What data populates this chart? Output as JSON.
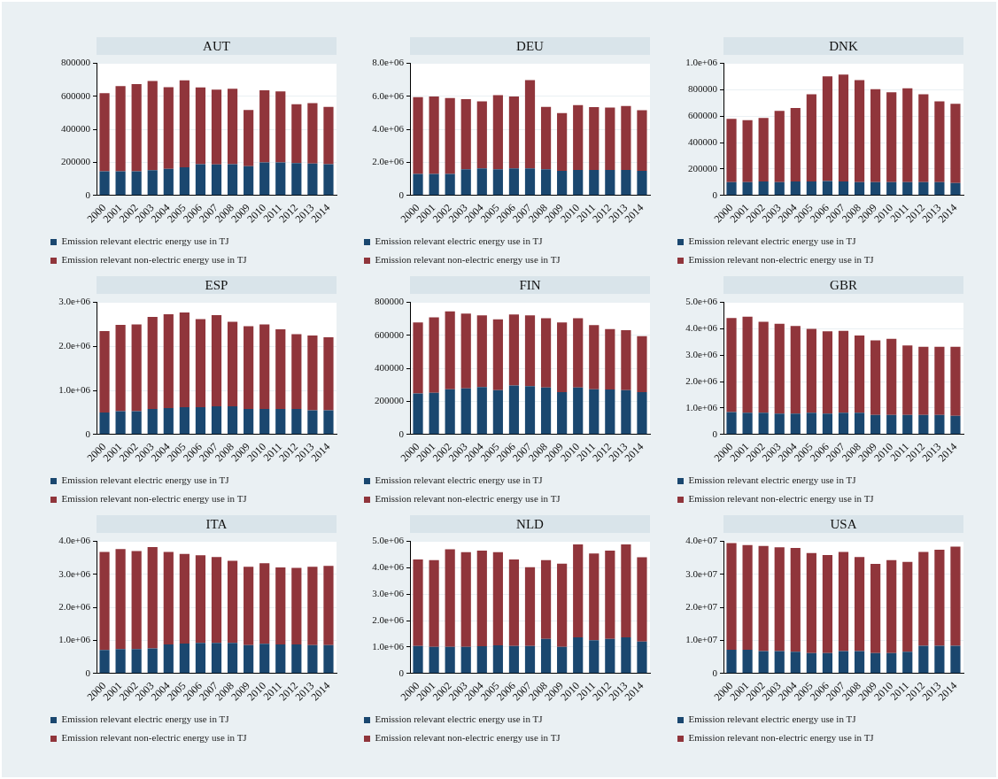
{
  "chart_data": [
    {
      "type": "bar",
      "title": "AUT",
      "categories": [
        "2000",
        "2001",
        "2002",
        "2003",
        "2004",
        "2005",
        "2006",
        "2007",
        "2008",
        "2009",
        "2010",
        "2011",
        "2012",
        "2013",
        "2014"
      ],
      "stacked": true,
      "grid": "y",
      "legend": "bottom",
      "ylim": [
        0,
        800000
      ],
      "yticks": [
        0,
        200000,
        400000,
        600000,
        800000
      ],
      "series": [
        {
          "name": "Emission relevant electric energy use in TJ",
          "color": "#1a476f",
          "values": [
            146000,
            146000,
            146000,
            153000,
            161000,
            171000,
            190000,
            188000,
            190000,
            177000,
            200000,
            200000,
            196000,
            194000,
            190000
          ]
        },
        {
          "name": "Emission relevant non-electric energy use in TJ",
          "color": "#90353b",
          "values": [
            474000,
            516000,
            528000,
            540000,
            495000,
            526000,
            464000,
            453000,
            457000,
            341000,
            437000,
            431000,
            357000,
            365000,
            346000
          ]
        }
      ]
    },
    {
      "type": "bar",
      "title": "DEU",
      "categories": [
        "2000",
        "2001",
        "2002",
        "2003",
        "2004",
        "2005",
        "2006",
        "2007",
        "2008",
        "2009",
        "2010",
        "2011",
        "2012",
        "2013",
        "2014"
      ],
      "stacked": true,
      "grid": "y",
      "legend": "bottom",
      "ylim": [
        0,
        8000000
      ],
      "yticks": [
        0,
        {
          "value": 2000000,
          "label": "2.0e+06"
        },
        {
          "value": 4000000,
          "label": "4.0e+06"
        },
        {
          "value": 6000000,
          "label": "6.0e+06"
        },
        {
          "value": 8000000,
          "label": "8.0e+06"
        }
      ],
      "series": [
        {
          "name": "Emission relevant electric energy use in TJ",
          "color": "#1a476f",
          "values": [
            1310000,
            1310000,
            1310000,
            1590000,
            1640000,
            1590000,
            1640000,
            1640000,
            1590000,
            1490000,
            1540000,
            1540000,
            1540000,
            1540000,
            1490000
          ]
        },
        {
          "name": "Emission relevant non-electric energy use in TJ",
          "color": "#90353b",
          "values": [
            4640000,
            4690000,
            4590000,
            4240000,
            4060000,
            4490000,
            4360000,
            5350000,
            3780000,
            3500000,
            3930000,
            3810000,
            3780000,
            3880000,
            3680000
          ]
        }
      ]
    },
    {
      "type": "bar",
      "title": "DNK",
      "categories": [
        "2000",
        "2001",
        "2002",
        "2003",
        "2004",
        "2005",
        "2006",
        "2007",
        "2008",
        "2009",
        "2010",
        "2011",
        "2012",
        "2013",
        "2014"
      ],
      "stacked": true,
      "grid": "y",
      "legend": "bottom",
      "ylim": [
        0,
        1000000
      ],
      "yticks": [
        0,
        200000,
        400000,
        600000,
        800000,
        {
          "value": 1000000,
          "label": "1.0e+06"
        }
      ],
      "series": [
        {
          "name": "Emission relevant electric energy use in TJ",
          "color": "#1a476f",
          "values": [
            101000,
            101000,
            107000,
            101000,
            107000,
            107000,
            110000,
            107000,
            101000,
            101000,
            101000,
            101000,
            101000,
            101000,
            95000
          ]
        },
        {
          "name": "Emission relevant non-electric energy use in TJ",
          "color": "#90353b",
          "values": [
            479000,
            470000,
            480000,
            539000,
            556000,
            660000,
            792000,
            808000,
            773000,
            704000,
            681000,
            710000,
            666000,
            612000,
            599000
          ]
        }
      ]
    },
    {
      "type": "bar",
      "title": "ESP",
      "categories": [
        "2000",
        "2001",
        "2002",
        "2003",
        "2004",
        "2005",
        "2006",
        "2007",
        "2008",
        "2009",
        "2010",
        "2011",
        "2012",
        "2013",
        "2014"
      ],
      "stacked": true,
      "grid": "y",
      "legend": "bottom",
      "ylim": [
        0,
        3000000
      ],
      "yticks": [
        0,
        {
          "value": 1000000,
          "label": "1.0e+06"
        },
        {
          "value": 2000000,
          "label": "2.0e+06"
        },
        {
          "value": 3000000,
          "label": "3.0e+06"
        }
      ],
      "series": [
        {
          "name": "Emission relevant electric energy use in TJ",
          "color": "#1a476f",
          "values": [
            500000,
            530000,
            530000,
            580000,
            600000,
            620000,
            620000,
            640000,
            640000,
            580000,
            580000,
            580000,
            580000,
            550000,
            550000
          ]
        },
        {
          "name": "Emission relevant non-electric energy use in TJ",
          "color": "#90353b",
          "values": [
            1850000,
            1960000,
            1970000,
            2090000,
            2130000,
            2150000,
            2000000,
            2070000,
            1920000,
            1880000,
            1920000,
            1810000,
            1700000,
            1700000,
            1660000
          ]
        }
      ]
    },
    {
      "type": "bar",
      "title": "FIN",
      "categories": [
        "2000",
        "2001",
        "2002",
        "2003",
        "2004",
        "2005",
        "2006",
        "2007",
        "2008",
        "2009",
        "2010",
        "2011",
        "2012",
        "2013",
        "2014"
      ],
      "stacked": true,
      "grid": "y",
      "legend": "bottom",
      "ylim": [
        0,
        800000
      ],
      "yticks": [
        0,
        200000,
        400000,
        600000,
        800000
      ],
      "series": [
        {
          "name": "Emission relevant electric energy use in TJ",
          "color": "#1a476f",
          "values": [
            249000,
            252000,
            274000,
            279000,
            287000,
            269000,
            297000,
            292000,
            284000,
            257000,
            284000,
            274000,
            272000,
            269000,
            257000
          ]
        },
        {
          "name": "Emission relevant non-electric energy use in TJ",
          "color": "#90353b",
          "values": [
            430000,
            458000,
            471000,
            453000,
            435000,
            428000,
            430000,
            430000,
            420000,
            422000,
            420000,
            388000,
            367000,
            363000,
            339000
          ]
        }
      ]
    },
    {
      "type": "bar",
      "title": "GBR",
      "categories": [
        "2000",
        "2001",
        "2002",
        "2003",
        "2004",
        "2005",
        "2006",
        "2007",
        "2008",
        "2009",
        "2010",
        "2011",
        "2012",
        "2013",
        "2014"
      ],
      "stacked": true,
      "grid": "y",
      "legend": "bottom",
      "ylim": [
        0,
        5000000
      ],
      "yticks": [
        0,
        {
          "value": 1000000,
          "label": "1.0e+06"
        },
        {
          "value": 2000000,
          "label": "2.0e+06"
        },
        {
          "value": 3000000,
          "label": "3.0e+06"
        },
        {
          "value": 4000000,
          "label": "4.0e+06"
        },
        {
          "value": 5000000,
          "label": "5.0e+06"
        }
      ],
      "series": [
        {
          "name": "Emission relevant electric energy use in TJ",
          "color": "#1a476f",
          "values": [
            850000,
            820000,
            820000,
            790000,
            790000,
            820000,
            790000,
            820000,
            820000,
            740000,
            740000,
            740000,
            740000,
            740000,
            710000
          ]
        },
        {
          "name": "Emission relevant non-electric energy use in TJ",
          "color": "#90353b",
          "values": [
            3560000,
            3640000,
            3450000,
            3400000,
            3320000,
            3180000,
            3120000,
            3100000,
            2930000,
            2820000,
            2880000,
            2630000,
            2580000,
            2580000,
            2610000
          ]
        }
      ]
    },
    {
      "type": "bar",
      "title": "ITA",
      "categories": [
        "2000",
        "2001",
        "2002",
        "2003",
        "2004",
        "2005",
        "2006",
        "2007",
        "2008",
        "2009",
        "2010",
        "2011",
        "2012",
        "2013",
        "2014"
      ],
      "stacked": true,
      "grid": "y",
      "legend": "bottom",
      "ylim": [
        0,
        4000000
      ],
      "yticks": [
        0,
        {
          "value": 1000000,
          "label": "1.0e+06"
        },
        {
          "value": 2000000,
          "label": "2.0e+06"
        },
        {
          "value": 3000000,
          "label": "3.0e+06"
        },
        {
          "value": 4000000,
          "label": "4.0e+06"
        }
      ],
      "series": [
        {
          "name": "Emission relevant electric energy use in TJ",
          "color": "#1a476f",
          "values": [
            710000,
            740000,
            740000,
            760000,
            880000,
            910000,
            930000,
            930000,
            930000,
            860000,
            900000,
            880000,
            880000,
            860000,
            860000
          ]
        },
        {
          "name": "Emission relevant non-electric energy use in TJ",
          "color": "#90353b",
          "values": [
            2970000,
            3030000,
            2970000,
            3070000,
            2800000,
            2710000,
            2650000,
            2600000,
            2480000,
            2370000,
            2440000,
            2330000,
            2320000,
            2370000,
            2400000
          ]
        }
      ]
    },
    {
      "type": "bar",
      "title": "NLD",
      "categories": [
        "2000",
        "2001",
        "2002",
        "2003",
        "2004",
        "2005",
        "2006",
        "2007",
        "2008",
        "2009",
        "2010",
        "2011",
        "2012",
        "2013",
        "2014"
      ],
      "stacked": true,
      "grid": "y",
      "legend": "bottom",
      "ylim": [
        0,
        5000000
      ],
      "yticks": [
        0,
        {
          "value": 1000000,
          "label": "1.0e+06"
        },
        {
          "value": 2000000,
          "label": "2.0e+06"
        },
        {
          "value": 3000000,
          "label": "3.0e+06"
        },
        {
          "value": 4000000,
          "label": "4.0e+06"
        },
        {
          "value": 5000000,
          "label": "5.0e+06"
        }
      ],
      "series": [
        {
          "name": "Emission relevant electric energy use in TJ",
          "color": "#1a476f",
          "values": [
            1040000,
            1010000,
            1010000,
            1010000,
            1030000,
            1070000,
            1040000,
            1040000,
            1310000,
            1010000,
            1370000,
            1260000,
            1310000,
            1370000,
            1210000
          ]
        },
        {
          "name": "Emission relevant non-electric energy use in TJ",
          "color": "#90353b",
          "values": [
            3280000,
            3280000,
            3690000,
            3580000,
            3620000,
            3520000,
            3280000,
            2980000,
            2980000,
            3150000,
            3520000,
            3280000,
            3340000,
            3520000,
            3190000
          ]
        }
      ]
    },
    {
      "type": "bar",
      "title": "USA",
      "categories": [
        "2000",
        "2001",
        "2002",
        "2003",
        "2004",
        "2005",
        "2006",
        "2007",
        "2008",
        "2009",
        "2010",
        "2011",
        "2012",
        "2013",
        "2014"
      ],
      "stacked": true,
      "grid": "y",
      "legend": "bottom",
      "ylim": [
        0,
        40000000
      ],
      "yticks": [
        0,
        {
          "value": 10000000,
          "label": "1.0e+07"
        },
        {
          "value": 20000000,
          "label": "2.0e+07"
        },
        {
          "value": 30000000,
          "label": "3.0e+07"
        },
        {
          "value": 40000000,
          "label": "4.0e+07"
        }
      ],
      "series": [
        {
          "name": "Emission relevant electric energy use in TJ",
          "color": "#1a476f",
          "values": [
            7200000,
            7200000,
            6800000,
            6800000,
            6600000,
            6200000,
            6200000,
            6800000,
            6800000,
            6200000,
            6200000,
            6600000,
            8400000,
            8400000,
            8400000
          ]
        },
        {
          "name": "Emission relevant non-electric energy use in TJ",
          "color": "#90353b",
          "values": [
            32300000,
            31700000,
            31800000,
            31400000,
            31400000,
            30300000,
            29700000,
            30000000,
            28500000,
            27000000,
            28100000,
            27200000,
            28400000,
            29100000,
            30000000
          ]
        }
      ]
    }
  ]
}
